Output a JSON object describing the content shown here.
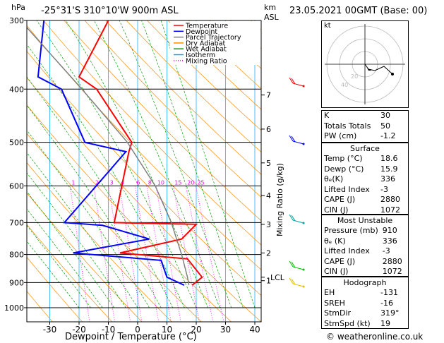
{
  "header": {
    "hpa_label": "hPa",
    "location": "-25°31'S 310°10'W 900m ASL",
    "km_label": "km",
    "asl_label": "ASL",
    "datetime": "23.05.2021 00GMT (Base: 00)",
    "footer": "© weatheronline.co.uk"
  },
  "chart_data": {
    "type": "line",
    "chart_kind": "skew-T log-P diagram",
    "xlabel": "Dewpoint / Temperature (°C)",
    "ylabel_right": "Mixing Ratio (g/kg)",
    "x_ticks": [
      -30,
      -20,
      -10,
      0,
      10,
      20,
      30,
      40
    ],
    "pressure_levels": [
      300,
      400,
      500,
      600,
      700,
      800,
      900,
      1000
    ],
    "km_ticks": [
      {
        "km": "7",
        "p": 410
      },
      {
        "km": "6",
        "p": 473
      },
      {
        "km": "5",
        "p": 545
      },
      {
        "km": "4",
        "p": 625
      },
      {
        "km": "3",
        "p": 705
      },
      {
        "km": "2",
        "p": 795
      },
      {
        "km": "1",
        "p": 893
      }
    ],
    "lcl_label": "LCL",
    "lcl_p": 880,
    "mixing_ratio_labels": [
      "1",
      "2",
      "3",
      "4",
      "6",
      "8",
      "10",
      "15",
      "20",
      "25"
    ],
    "mixing_ratio_values": [
      1,
      2,
      3,
      4,
      6,
      8,
      10,
      15,
      20,
      25
    ],
    "legend": [
      {
        "name": "Temperature",
        "color": "#ff0000",
        "style": "solid"
      },
      {
        "name": "Dewpoint",
        "color": "#0000ff",
        "style": "solid"
      },
      {
        "name": "Parcel Trajectory",
        "color": "#808080",
        "style": "solid"
      },
      {
        "name": "Dry Adiabat",
        "color": "#ff8c00",
        "style": "solid"
      },
      {
        "name": "Wet Adiabat",
        "color": "#00a000",
        "style": "solid"
      },
      {
        "name": "Isotherm",
        "color": "#00a0ff",
        "style": "solid"
      },
      {
        "name": "Mixing Ratio",
        "color": "#ff00ff",
        "style": "dotted"
      }
    ],
    "series": [
      {
        "name": "Temperature",
        "color": "#ff0000",
        "points": [
          [
            300,
            -10
          ],
          [
            380,
            -20
          ],
          [
            400,
            -14
          ],
          [
            500,
            -2
          ],
          [
            520,
            -3
          ],
          [
            700,
            -8
          ],
          [
            705,
            20
          ],
          [
            750,
            15
          ],
          [
            795,
            -6
          ],
          [
            815,
            17
          ],
          [
            880,
            22
          ],
          [
            910,
            18.6
          ]
        ]
      },
      {
        "name": "Dewpoint",
        "color": "#0000ff",
        "points": [
          [
            300,
            -32
          ],
          [
            380,
            -34
          ],
          [
            400,
            -26
          ],
          [
            500,
            -18
          ],
          [
            520,
            -4
          ],
          [
            700,
            -25
          ],
          [
            708,
            -12
          ],
          [
            750,
            4
          ],
          [
            795,
            -22
          ],
          [
            820,
            8
          ],
          [
            880,
            10
          ],
          [
            910,
            15.9
          ]
        ]
      },
      {
        "name": "Parcel Trajectory",
        "color": "#808080",
        "points": [
          [
            300,
            -40
          ],
          [
            400,
            -19
          ],
          [
            500,
            -3.5
          ],
          [
            600,
            6
          ],
          [
            700,
            11.5
          ],
          [
            800,
            15
          ],
          [
            880,
            17
          ],
          [
            910,
            17.5
          ]
        ]
      }
    ]
  },
  "hodograph": {
    "label": "kt",
    "ring_labels": [
      "20",
      "40"
    ]
  },
  "indices": {
    "rows1": [
      {
        "k": "K",
        "v": "30"
      },
      {
        "k": "Totals Totals",
        "v": "50"
      },
      {
        "k": "PW (cm)",
        "v": "-1.2"
      }
    ],
    "surface_title": "Surface",
    "surface": [
      {
        "k": "Temp (°C)",
        "v": "18.6"
      },
      {
        "k": "Dewp (°C)",
        "v": "15.9"
      },
      {
        "k": "θₑ(K)",
        "v": "336"
      },
      {
        "k": "Lifted Index",
        "v": "-3"
      },
      {
        "k": "CAPE (J)",
        "v": "2880"
      },
      {
        "k": "CIN (J)",
        "v": "1072"
      }
    ],
    "unstable_title": "Most Unstable",
    "unstable": [
      {
        "k": "Pressure (mb)",
        "v": "910"
      },
      {
        "k": "θₑ (K)",
        "v": "336"
      },
      {
        "k": "Lifted Index",
        "v": "-3"
      },
      {
        "k": "CAPE (J)",
        "v": "2880"
      },
      {
        "k": "CIN (J)",
        "v": "1072"
      }
    ],
    "hodo_title": "Hodograph",
    "hodo": [
      {
        "k": "EH",
        "v": "-131"
      },
      {
        "k": "SREH",
        "v": "-16"
      },
      {
        "k": "StmDir",
        "v": "319°"
      },
      {
        "k": "StmSpd (kt)",
        "v": "19"
      }
    ]
  }
}
